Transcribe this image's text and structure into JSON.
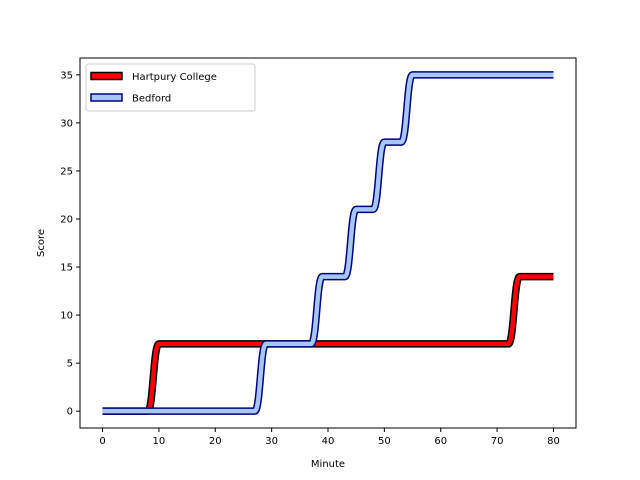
{
  "chart_data": {
    "type": "line",
    "title": "",
    "xlabel": "Minute",
    "ylabel": "Score",
    "xlim": [
      -4,
      84
    ],
    "ylim": [
      -1.75,
      36.75
    ],
    "xticks": [
      0,
      10,
      20,
      30,
      40,
      50,
      60,
      70,
      80
    ],
    "yticks": [
      0,
      5,
      10,
      15,
      20,
      25,
      30,
      35
    ],
    "grid": false,
    "legend_position": "top-left",
    "series": [
      {
        "name": "Hartpury College",
        "color": "#ff0000",
        "edge_color": "#000000",
        "points": [
          [
            0,
            0
          ],
          [
            8,
            0
          ],
          [
            10,
            7
          ],
          [
            72,
            7
          ],
          [
            74,
            14
          ],
          [
            80,
            14
          ]
        ]
      },
      {
        "name": "Bedford",
        "color": "#a6c8f0",
        "edge_color": "#000080",
        "points": [
          [
            0,
            0
          ],
          [
            27,
            0
          ],
          [
            29,
            7
          ],
          [
            37,
            7
          ],
          [
            39,
            14
          ],
          [
            43,
            14
          ],
          [
            45,
            21
          ],
          [
            48,
            21
          ],
          [
            50,
            28
          ],
          [
            53,
            28
          ],
          [
            55,
            35
          ],
          [
            80,
            35
          ]
        ]
      }
    ]
  }
}
